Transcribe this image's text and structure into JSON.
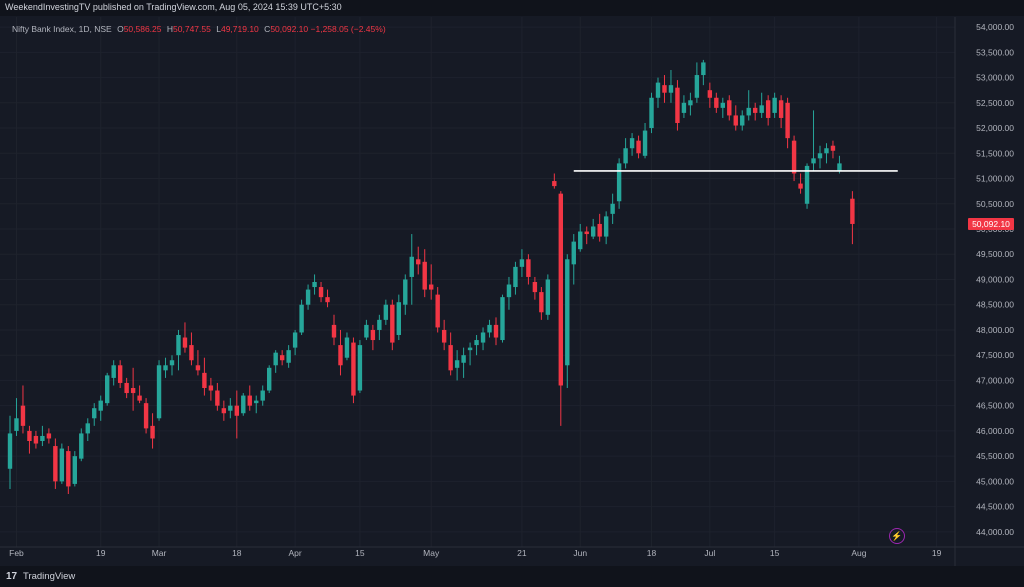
{
  "header": {
    "published_text": "WeekendInvestingTV published on TradingView.com, Aug 05, 2024 15:39 UTC+5:30"
  },
  "legend": {
    "symbol": "Nifty Bank Index, 1D, NSE",
    "open_label": "O",
    "open": "50,586.25",
    "high_label": "H",
    "high": "50,747.55",
    "low_label": "L",
    "low": "49,719.10",
    "close_label": "C",
    "close": "50,092.10",
    "change": "−1,258.05 (−2.45%)"
  },
  "price_tag": "50,092.10",
  "footer": {
    "logo_glyph": "17",
    "brand": "TradingView"
  },
  "icons": {
    "flash": "lightning-bolt-icon"
  },
  "colors": {
    "up": "#26a69a",
    "down": "#f23645",
    "level_line": "#ffffff",
    "background": "#161a25"
  },
  "chart_data": {
    "type": "candlestick",
    "ylim": [
      43700,
      54200
    ],
    "y_ticks": [
      "54,000.00",
      "53,500.00",
      "53,000.00",
      "52,500.00",
      "52,000.00",
      "51,500.00",
      "51,000.00",
      "50,500.00",
      "50,000.00",
      "49,500.00",
      "49,000.00",
      "48,500.00",
      "48,000.00",
      "47,500.00",
      "47,000.00",
      "46,500.00",
      "46,000.00",
      "45,500.00",
      "45,000.00",
      "44,500.00",
      "44,000.00"
    ],
    "x_ticks": [
      {
        "label": "Feb",
        "index": 1
      },
      {
        "label": "19",
        "index": 14
      },
      {
        "label": "Mar",
        "index": 23
      },
      {
        "label": "18",
        "index": 35
      },
      {
        "label": "Apr",
        "index": 44
      },
      {
        "label": "15",
        "index": 54
      },
      {
        "label": "May",
        "index": 65
      },
      {
        "label": "21",
        "index": 79
      },
      {
        "label": "Jun",
        "index": 88
      },
      {
        "label": "18",
        "index": 99
      },
      {
        "label": "Jul",
        "index": 108
      },
      {
        "label": "15",
        "index": 118
      },
      {
        "label": "Aug",
        "index": 131
      },
      {
        "label": "19",
        "index": 143
      }
    ],
    "support_level": 51150,
    "support_range": [
      87,
      137
    ],
    "candles": [
      {
        "i": 0,
        "o": 45250,
        "h": 46300,
        "l": 44850,
        "c": 45950
      },
      {
        "i": 1,
        "o": 46000,
        "h": 46650,
        "l": 45900,
        "c": 46250
      },
      {
        "i": 2,
        "o": 46500,
        "h": 46900,
        "l": 45950,
        "c": 46100
      },
      {
        "i": 3,
        "o": 46000,
        "h": 46100,
        "l": 45550,
        "c": 45800
      },
      {
        "i": 4,
        "o": 45900,
        "h": 46000,
        "l": 45650,
        "c": 45750
      },
      {
        "i": 5,
        "o": 45800,
        "h": 46100,
        "l": 45700,
        "c": 45900
      },
      {
        "i": 6,
        "o": 45950,
        "h": 46050,
        "l": 45750,
        "c": 45850
      },
      {
        "i": 7,
        "o": 45700,
        "h": 45850,
        "l": 44850,
        "c": 45000
      },
      {
        "i": 8,
        "o": 45000,
        "h": 45750,
        "l": 44950,
        "c": 45650
      },
      {
        "i": 9,
        "o": 45600,
        "h": 45700,
        "l": 44750,
        "c": 44900
      },
      {
        "i": 10,
        "o": 44950,
        "h": 45600,
        "l": 44900,
        "c": 45500
      },
      {
        "i": 11,
        "o": 45450,
        "h": 46050,
        "l": 45400,
        "c": 45950
      },
      {
        "i": 12,
        "o": 45950,
        "h": 46250,
        "l": 45800,
        "c": 46150
      },
      {
        "i": 13,
        "o": 46250,
        "h": 46550,
        "l": 46100,
        "c": 46450
      },
      {
        "i": 14,
        "o": 46400,
        "h": 46700,
        "l": 46200,
        "c": 46600
      },
      {
        "i": 15,
        "o": 46550,
        "h": 47150,
        "l": 46500,
        "c": 47100
      },
      {
        "i": 16,
        "o": 47050,
        "h": 47400,
        "l": 46900,
        "c": 47300
      },
      {
        "i": 17,
        "o": 47300,
        "h": 47400,
        "l": 46850,
        "c": 46950
      },
      {
        "i": 18,
        "o": 46950,
        "h": 47050,
        "l": 46650,
        "c": 46750
      },
      {
        "i": 19,
        "o": 46850,
        "h": 47250,
        "l": 46400,
        "c": 46750
      },
      {
        "i": 20,
        "o": 46700,
        "h": 46900,
        "l": 46550,
        "c": 46600
      },
      {
        "i": 21,
        "o": 46550,
        "h": 46650,
        "l": 45950,
        "c": 46050
      },
      {
        "i": 22,
        "o": 46100,
        "h": 46350,
        "l": 45650,
        "c": 45850
      },
      {
        "i": 23,
        "o": 46250,
        "h": 47400,
        "l": 46200,
        "c": 47300
      },
      {
        "i": 24,
        "o": 47200,
        "h": 47450,
        "l": 47050,
        "c": 47300
      },
      {
        "i": 25,
        "o": 47300,
        "h": 47500,
        "l": 47100,
        "c": 47400
      },
      {
        "i": 26,
        "o": 47500,
        "h": 48000,
        "l": 47200,
        "c": 47900
      },
      {
        "i": 27,
        "o": 47850,
        "h": 48150,
        "l": 47550,
        "c": 47650
      },
      {
        "i": 28,
        "o": 47700,
        "h": 47950,
        "l": 47300,
        "c": 47400
      },
      {
        "i": 29,
        "o": 47300,
        "h": 47600,
        "l": 47100,
        "c": 47200
      },
      {
        "i": 30,
        "o": 47150,
        "h": 47450,
        "l": 46700,
        "c": 46850
      },
      {
        "i": 31,
        "o": 46900,
        "h": 47050,
        "l": 46600,
        "c": 46800
      },
      {
        "i": 32,
        "o": 46800,
        "h": 46950,
        "l": 46400,
        "c": 46500
      },
      {
        "i": 33,
        "o": 46450,
        "h": 46600,
        "l": 46200,
        "c": 46350
      },
      {
        "i": 34,
        "o": 46400,
        "h": 46650,
        "l": 46250,
        "c": 46500
      },
      {
        "i": 35,
        "o": 46500,
        "h": 46800,
        "l": 45850,
        "c": 46300
      },
      {
        "i": 36,
        "o": 46350,
        "h": 46750,
        "l": 46300,
        "c": 46700
      },
      {
        "i": 37,
        "o": 46700,
        "h": 46900,
        "l": 46400,
        "c": 46500
      },
      {
        "i": 38,
        "o": 46550,
        "h": 46700,
        "l": 46350,
        "c": 46600
      },
      {
        "i": 39,
        "o": 46600,
        "h": 46900,
        "l": 46500,
        "c": 46800
      },
      {
        "i": 40,
        "o": 46800,
        "h": 47300,
        "l": 46750,
        "c": 47250
      },
      {
        "i": 41,
        "o": 47300,
        "h": 47600,
        "l": 47150,
        "c": 47550
      },
      {
        "i": 42,
        "o": 47500,
        "h": 47600,
        "l": 47300,
        "c": 47400
      },
      {
        "i": 43,
        "o": 47350,
        "h": 47700,
        "l": 47250,
        "c": 47600
      },
      {
        "i": 44,
        "o": 47650,
        "h": 48000,
        "l": 47500,
        "c": 47950
      },
      {
        "i": 45,
        "o": 47950,
        "h": 48600,
        "l": 47900,
        "c": 48500
      },
      {
        "i": 46,
        "o": 48500,
        "h": 48900,
        "l": 48400,
        "c": 48800
      },
      {
        "i": 47,
        "o": 48850,
        "h": 49100,
        "l": 48700,
        "c": 48950
      },
      {
        "i": 48,
        "o": 48850,
        "h": 48950,
        "l": 48550,
        "c": 48650
      },
      {
        "i": 49,
        "o": 48650,
        "h": 48800,
        "l": 48450,
        "c": 48550
      },
      {
        "i": 50,
        "o": 48100,
        "h": 48300,
        "l": 47700,
        "c": 47850
      },
      {
        "i": 51,
        "o": 47700,
        "h": 48000,
        "l": 47100,
        "c": 47300
      },
      {
        "i": 52,
        "o": 47450,
        "h": 47950,
        "l": 47400,
        "c": 47850
      },
      {
        "i": 53,
        "o": 47750,
        "h": 47850,
        "l": 46550,
        "c": 46700
      },
      {
        "i": 54,
        "o": 46800,
        "h": 47800,
        "l": 46750,
        "c": 47700
      },
      {
        "i": 55,
        "o": 47850,
        "h": 48200,
        "l": 47800,
        "c": 48100
      },
      {
        "i": 56,
        "o": 48000,
        "h": 48100,
        "l": 47600,
        "c": 47800
      },
      {
        "i": 57,
        "o": 48000,
        "h": 48300,
        "l": 47800,
        "c": 48200
      },
      {
        "i": 58,
        "o": 48200,
        "h": 48600,
        "l": 48100,
        "c": 48500
      },
      {
        "i": 59,
        "o": 48500,
        "h": 48600,
        "l": 47600,
        "c": 47750
      },
      {
        "i": 60,
        "o": 47900,
        "h": 48700,
        "l": 47800,
        "c": 48550
      },
      {
        "i": 61,
        "o": 48500,
        "h": 49100,
        "l": 48300,
        "c": 49000
      },
      {
        "i": 62,
        "o": 49050,
        "h": 49900,
        "l": 48500,
        "c": 49450
      },
      {
        "i": 63,
        "o": 49400,
        "h": 49650,
        "l": 49100,
        "c": 49300
      },
      {
        "i": 64,
        "o": 49350,
        "h": 49600,
        "l": 48650,
        "c": 48800
      },
      {
        "i": 65,
        "o": 48900,
        "h": 49300,
        "l": 48600,
        "c": 48800
      },
      {
        "i": 66,
        "o": 48700,
        "h": 48850,
        "l": 47950,
        "c": 48050
      },
      {
        "i": 67,
        "o": 48000,
        "h": 48200,
        "l": 47600,
        "c": 47750
      },
      {
        "i": 68,
        "o": 47700,
        "h": 47950,
        "l": 47100,
        "c": 47200
      },
      {
        "i": 69,
        "o": 47250,
        "h": 47600,
        "l": 47000,
        "c": 47400
      },
      {
        "i": 70,
        "o": 47350,
        "h": 47650,
        "l": 47050,
        "c": 47500
      },
      {
        "i": 71,
        "o": 47600,
        "h": 47750,
        "l": 47300,
        "c": 47650
      },
      {
        "i": 72,
        "o": 47700,
        "h": 47900,
        "l": 47500,
        "c": 47800
      },
      {
        "i": 73,
        "o": 47750,
        "h": 48050,
        "l": 47600,
        "c": 47950
      },
      {
        "i": 74,
        "o": 47950,
        "h": 48200,
        "l": 47850,
        "c": 48100
      },
      {
        "i": 75,
        "o": 48100,
        "h": 48250,
        "l": 47700,
        "c": 47850
      },
      {
        "i": 76,
        "o": 47800,
        "h": 48700,
        "l": 47750,
        "c": 48650
      },
      {
        "i": 77,
        "o": 48650,
        "h": 49050,
        "l": 48400,
        "c": 48900
      },
      {
        "i": 78,
        "o": 48850,
        "h": 49350,
        "l": 48700,
        "c": 49250
      },
      {
        "i": 79,
        "o": 49250,
        "h": 49600,
        "l": 49050,
        "c": 49400
      },
      {
        "i": 80,
        "o": 49400,
        "h": 49500,
        "l": 48900,
        "c": 49050
      },
      {
        "i": 81,
        "o": 48950,
        "h": 49050,
        "l": 48600,
        "c": 48750
      },
      {
        "i": 82,
        "o": 48750,
        "h": 48850,
        "l": 48200,
        "c": 48350
      },
      {
        "i": 83,
        "o": 48300,
        "h": 49100,
        "l": 48200,
        "c": 49000
      },
      {
        "i": 84,
        "o": 50950,
        "h": 51100,
        "l": 50800,
        "c": 50850
      },
      {
        "i": 85,
        "o": 50700,
        "h": 50750,
        "l": 46100,
        "c": 46900
      },
      {
        "i": 86,
        "o": 47300,
        "h": 49500,
        "l": 46850,
        "c": 49400
      },
      {
        "i": 87,
        "o": 49300,
        "h": 49900,
        "l": 48900,
        "c": 49750
      },
      {
        "i": 88,
        "o": 49600,
        "h": 50100,
        "l": 49550,
        "c": 49950
      },
      {
        "i": 89,
        "o": 49950,
        "h": 50050,
        "l": 49700,
        "c": 49900
      },
      {
        "i": 90,
        "o": 49850,
        "h": 50200,
        "l": 49800,
        "c": 50050
      },
      {
        "i": 91,
        "o": 50100,
        "h": 50300,
        "l": 49750,
        "c": 49850
      },
      {
        "i": 92,
        "o": 49850,
        "h": 50350,
        "l": 49700,
        "c": 50250
      },
      {
        "i": 93,
        "o": 50300,
        "h": 50700,
        "l": 50100,
        "c": 50500
      },
      {
        "i": 94,
        "o": 50550,
        "h": 51400,
        "l": 50400,
        "c": 51300
      },
      {
        "i": 95,
        "o": 51300,
        "h": 51800,
        "l": 51200,
        "c": 51600
      },
      {
        "i": 96,
        "o": 51600,
        "h": 51900,
        "l": 51450,
        "c": 51800
      },
      {
        "i": 97,
        "o": 51750,
        "h": 51850,
        "l": 51400,
        "c": 51500
      },
      {
        "i": 98,
        "o": 51450,
        "h": 52100,
        "l": 51400,
        "c": 51950
      },
      {
        "i": 99,
        "o": 52000,
        "h": 52700,
        "l": 51900,
        "c": 52600
      },
      {
        "i": 100,
        "o": 52600,
        "h": 53000,
        "l": 52400,
        "c": 52900
      },
      {
        "i": 101,
        "o": 52850,
        "h": 53050,
        "l": 52500,
        "c": 52700
      },
      {
        "i": 102,
        "o": 52700,
        "h": 53150,
        "l": 52500,
        "c": 52850
      },
      {
        "i": 103,
        "o": 52800,
        "h": 52950,
        "l": 51950,
        "c": 52100
      },
      {
        "i": 104,
        "o": 52300,
        "h": 52650,
        "l": 52200,
        "c": 52500
      },
      {
        "i": 105,
        "o": 52450,
        "h": 52700,
        "l": 52250,
        "c": 52550
      },
      {
        "i": 106,
        "o": 52600,
        "h": 53300,
        "l": 52500,
        "c": 53050
      },
      {
        "i": 107,
        "o": 53050,
        "h": 53350,
        "l": 52850,
        "c": 53300
      },
      {
        "i": 108,
        "o": 52750,
        "h": 52900,
        "l": 52400,
        "c": 52600
      },
      {
        "i": 109,
        "o": 52600,
        "h": 52700,
        "l": 52300,
        "c": 52400
      },
      {
        "i": 110,
        "o": 52400,
        "h": 52600,
        "l": 52200,
        "c": 52500
      },
      {
        "i": 111,
        "o": 52550,
        "h": 52650,
        "l": 52150,
        "c": 52250
      },
      {
        "i": 112,
        "o": 52250,
        "h": 52450,
        "l": 51950,
        "c": 52050
      },
      {
        "i": 113,
        "o": 52050,
        "h": 52350,
        "l": 51950,
        "c": 52250
      },
      {
        "i": 114,
        "o": 52250,
        "h": 52750,
        "l": 52150,
        "c": 52400
      },
      {
        "i": 115,
        "o": 52400,
        "h": 52500,
        "l": 52150,
        "c": 52300
      },
      {
        "i": 116,
        "o": 52300,
        "h": 52700,
        "l": 52200,
        "c": 52450
      },
      {
        "i": 117,
        "o": 52550,
        "h": 52650,
        "l": 52050,
        "c": 52200
      },
      {
        "i": 118,
        "o": 52300,
        "h": 52700,
        "l": 52200,
        "c": 52600
      },
      {
        "i": 119,
        "o": 52550,
        "h": 52650,
        "l": 52000,
        "c": 52200
      },
      {
        "i": 120,
        "o": 52500,
        "h": 52600,
        "l": 51600,
        "c": 51800
      },
      {
        "i": 121,
        "o": 51750,
        "h": 51850,
        "l": 50950,
        "c": 51100
      },
      {
        "i": 122,
        "o": 50900,
        "h": 51100,
        "l": 50700,
        "c": 50800
      },
      {
        "i": 123,
        "o": 50500,
        "h": 51300,
        "l": 50400,
        "c": 51250
      },
      {
        "i": 124,
        "o": 51300,
        "h": 52350,
        "l": 51150,
        "c": 51400
      },
      {
        "i": 125,
        "o": 51400,
        "h": 51650,
        "l": 51200,
        "c": 51500
      },
      {
        "i": 126,
        "o": 51500,
        "h": 51700,
        "l": 51300,
        "c": 51600
      },
      {
        "i": 127,
        "o": 51650,
        "h": 51750,
        "l": 51400,
        "c": 51550
      },
      {
        "i": 128,
        "o": 51150,
        "h": 51450,
        "l": 51100,
        "c": 51300
      },
      {
        "i": 130,
        "o": 50600,
        "h": 50750,
        "l": 49700,
        "c": 50100
      }
    ]
  }
}
